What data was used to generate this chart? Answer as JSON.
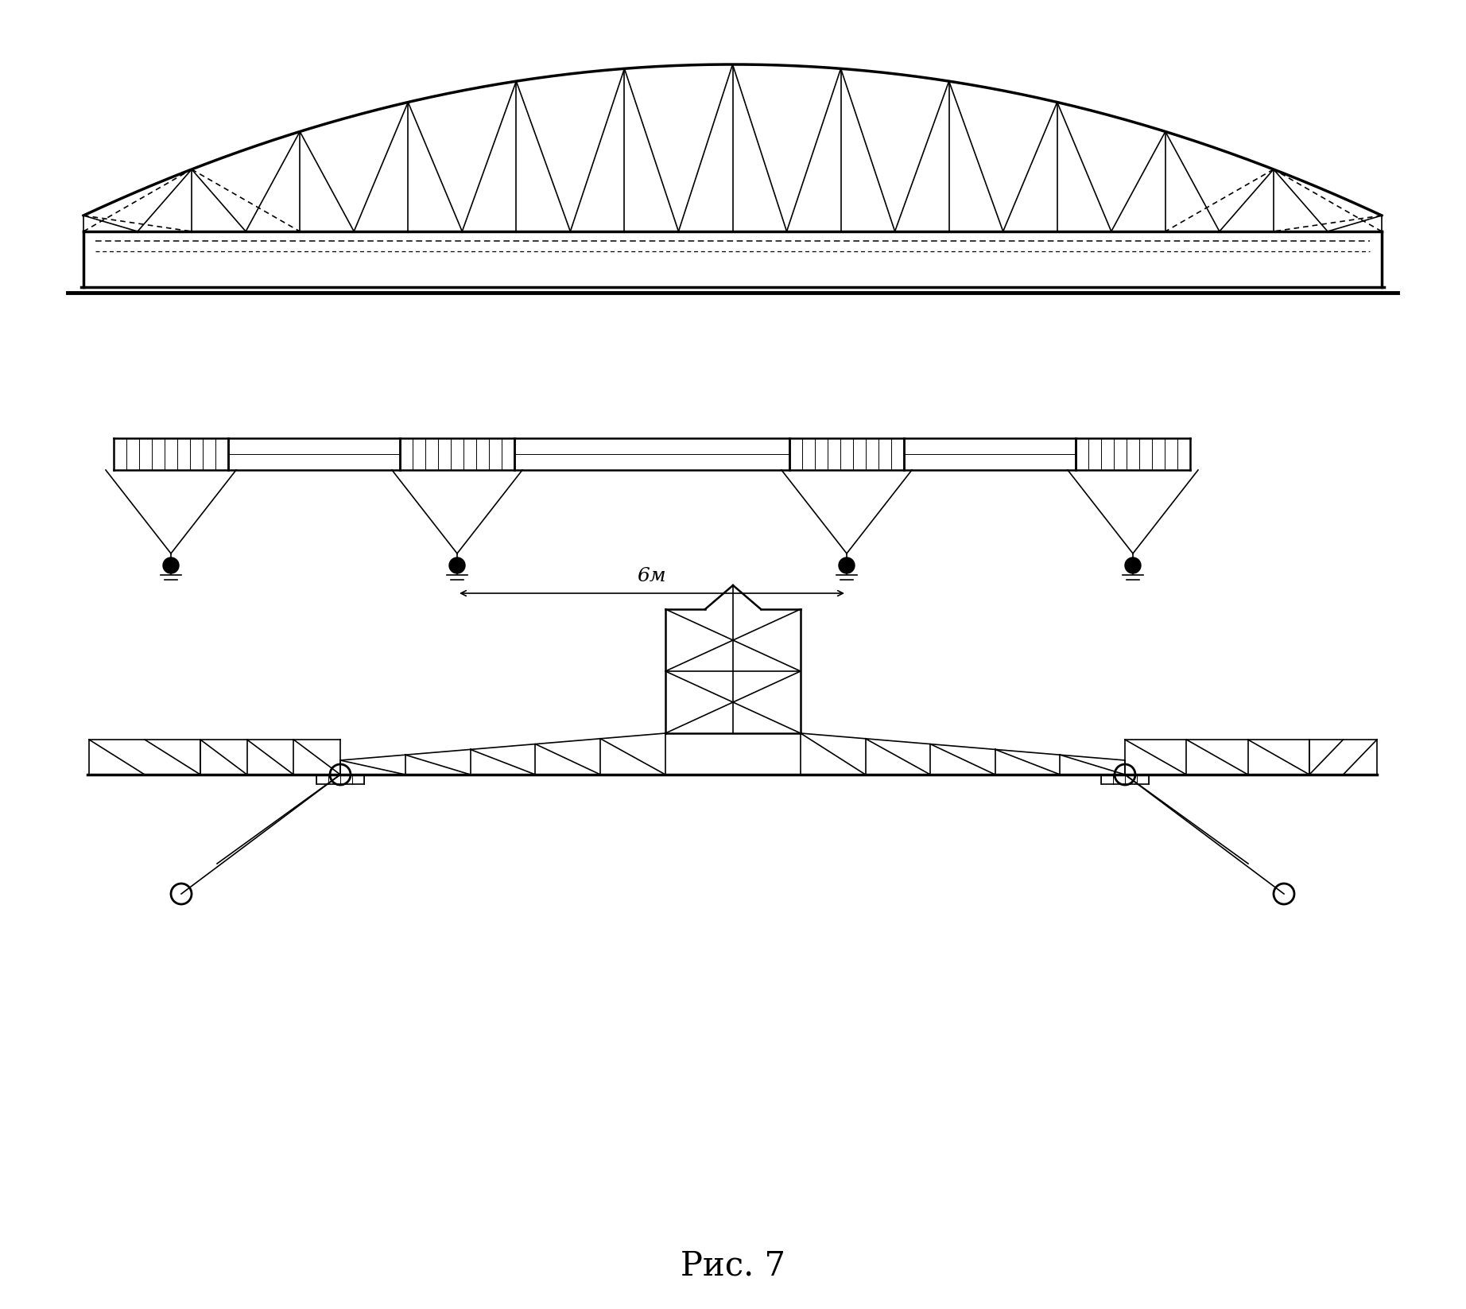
{
  "bg_color": "#ffffff",
  "line_color": "#000000",
  "title": "Рис. 7",
  "title_fontsize": 30,
  "fig_width": 18.44,
  "fig_height": 16.46,
  "dpi": 100
}
